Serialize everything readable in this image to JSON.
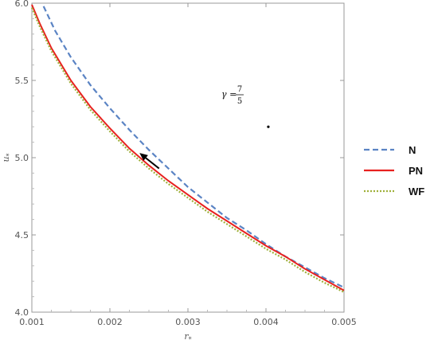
{
  "chart_data": {
    "type": "line",
    "title": "",
    "xlabel": "r",
    "xlabel_sub": "*",
    "ylabel": "u",
    "ylabel_sub": "*",
    "xlim": [
      0.001,
      0.005
    ],
    "ylim": [
      4.0,
      6.0
    ],
    "xticks": [
      0.001,
      0.002,
      0.003,
      0.004,
      0.005
    ],
    "xtick_labels": [
      "0.001",
      "0.002",
      "0.003",
      "0.004",
      "0.005"
    ],
    "yticks": [
      4.0,
      4.5,
      5.0,
      5.5,
      6.0
    ],
    "ytick_labels": [
      "4.0",
      "4.5",
      "5.0",
      "5.5",
      "6.0"
    ],
    "annotation": {
      "lhs": "γ =",
      "numerator": "7",
      "denominator": "5",
      "marker_point": {
        "x": 0.00403,
        "y": 5.2
      }
    },
    "arrow": {
      "from": {
        "x": 0.00263,
        "y": 4.93
      },
      "to": {
        "x": 0.00238,
        "y": 5.03
      }
    },
    "legend": {
      "position": "right"
    },
    "series": [
      {
        "name": "N",
        "color": "#5b84c4",
        "dash": "dashed",
        "x": [
          0.00115,
          0.0013,
          0.0015,
          0.00175,
          0.002,
          0.00225,
          0.0025,
          0.00275,
          0.003,
          0.00325,
          0.0035,
          0.00375,
          0.004,
          0.00425,
          0.0045,
          0.00475,
          0.005
        ],
        "y": [
          5.98,
          5.82,
          5.65,
          5.47,
          5.32,
          5.18,
          5.05,
          4.93,
          4.81,
          4.71,
          4.61,
          4.53,
          4.44,
          4.36,
          4.29,
          4.22,
          4.16
        ]
      },
      {
        "name": "PN",
        "color": "#e8211f",
        "dash": "solid",
        "x": [
          0.001,
          0.0011,
          0.00125,
          0.0015,
          0.00175,
          0.002,
          0.00225,
          0.0025,
          0.00275,
          0.003,
          0.00325,
          0.0035,
          0.00375,
          0.004,
          0.00425,
          0.0045,
          0.00475,
          0.005
        ],
        "y": [
          5.99,
          5.87,
          5.71,
          5.5,
          5.33,
          5.19,
          5.06,
          4.95,
          4.85,
          4.76,
          4.67,
          4.59,
          4.51,
          4.43,
          4.36,
          4.28,
          4.21,
          4.14
        ]
      },
      {
        "name": "WF",
        "color": "#9fb03a",
        "dash": "dotted",
        "x": [
          0.001,
          0.0011,
          0.00125,
          0.0015,
          0.00175,
          0.002,
          0.00225,
          0.0025,
          0.00275,
          0.003,
          0.00325,
          0.0035,
          0.00375,
          0.004,
          0.00425,
          0.0045,
          0.00475,
          0.005
        ],
        "y": [
          5.97,
          5.85,
          5.69,
          5.48,
          5.31,
          5.17,
          5.04,
          4.93,
          4.83,
          4.74,
          4.65,
          4.57,
          4.49,
          4.41,
          4.34,
          4.26,
          4.19,
          4.13
        ]
      }
    ]
  }
}
